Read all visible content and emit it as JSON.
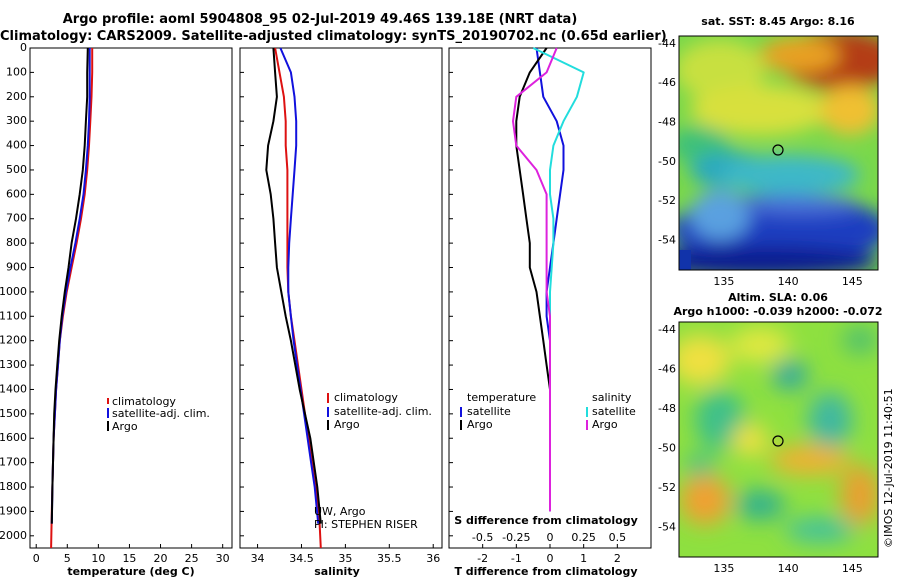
{
  "header": {
    "line1": "Argo profile: aoml 5904808_95 02-Jul-2019 49.46S 139.18E (NRT data)",
    "line2": "Climatology: CARS2009. Satellite-adjusted climatology: synTS_20190702.nc (0.65d earlier)"
  },
  "credit": "©IMOS 12-Jul-2019 11:40:51",
  "colors": {
    "climatology": "#dd1111",
    "satellite": "#1111dd",
    "argo": "#000000",
    "sat_salinity": "#22dddd",
    "argo_salinity": "#dd22dd"
  },
  "chart_data": [
    {
      "id": "temperature",
      "type": "line",
      "xlabel": "temperature (deg C)",
      "ylabel": "",
      "xlim": [
        -1,
        31.5
      ],
      "ylim": [
        2050,
        0
      ],
      "xticks": [
        0,
        5,
        10,
        15,
        20,
        25,
        30
      ],
      "yticks": [
        0,
        100,
        200,
        300,
        400,
        500,
        600,
        700,
        800,
        900,
        1000,
        1100,
        1200,
        1300,
        1400,
        1500,
        1600,
        1700,
        1800,
        1900,
        2000
      ],
      "legend": [
        "climatology",
        "satellite-adj. clim.",
        "Argo"
      ],
      "series": [
        {
          "name": "climatology",
          "color": "#dd1111",
          "x": [
            9.0,
            9.0,
            8.9,
            8.7,
            8.5,
            8.2,
            7.8,
            7.2,
            6.5,
            5.7,
            4.9,
            4.3,
            3.8,
            3.5,
            3.2,
            3.0,
            2.8,
            2.7,
            2.6,
            2.5,
            2.4
          ],
          "y": [
            0,
            100,
            200,
            300,
            400,
            500,
            600,
            700,
            800,
            900,
            1000,
            1100,
            1200,
            1300,
            1400,
            1500,
            1600,
            1700,
            1800,
            1900,
            2050
          ]
        },
        {
          "name": "satellite-adj. clim.",
          "color": "#1111dd",
          "x": [
            8.6,
            8.6,
            8.6,
            8.5,
            8.3,
            8.0,
            7.6,
            7.0,
            6.3,
            5.5,
            4.8,
            4.2,
            3.8,
            3.5,
            3.2,
            3.0,
            2.8,
            2.7,
            2.6,
            2.5
          ],
          "y": [
            0,
            100,
            200,
            300,
            400,
            500,
            600,
            700,
            800,
            900,
            1000,
            1100,
            1200,
            1300,
            1400,
            1500,
            1600,
            1700,
            1800,
            1950
          ]
        },
        {
          "name": "Argo",
          "color": "#000000",
          "x": [
            8.3,
            8.2,
            8.2,
            8.0,
            7.8,
            7.5,
            7.0,
            6.4,
            5.7,
            5.2,
            4.6,
            4.1,
            3.7,
            3.4,
            3.1,
            2.9,
            2.8,
            2.7,
            2.6,
            2.5
          ],
          "y": [
            0,
            100,
            200,
            300,
            400,
            500,
            600,
            700,
            800,
            900,
            1000,
            1100,
            1200,
            1300,
            1400,
            1500,
            1600,
            1700,
            1800,
            1950
          ]
        }
      ]
    },
    {
      "id": "salinity",
      "type": "line",
      "xlabel": "salinity",
      "ylabel": "",
      "xlim": [
        33.8,
        36.1
      ],
      "ylim": [
        2050,
        0
      ],
      "xticks": [
        34,
        34.5,
        35,
        35.5,
        36
      ],
      "legend": [
        "climatology",
        "satellite-adj. clim.",
        "Argo"
      ],
      "annotation": [
        "UW, Argo",
        "PI: STEPHEN RISER"
      ],
      "series": [
        {
          "name": "climatology",
          "color": "#dd1111",
          "x": [
            34.2,
            34.25,
            34.3,
            34.32,
            34.32,
            34.34,
            34.34,
            34.34,
            34.34,
            34.34,
            34.35,
            34.38,
            34.42,
            34.46,
            34.5,
            34.54,
            34.58,
            34.62,
            34.66,
            34.7,
            34.72
          ],
          "y": [
            0,
            100,
            200,
            300,
            400,
            500,
            600,
            700,
            800,
            900,
            1000,
            1100,
            1200,
            1300,
            1400,
            1500,
            1600,
            1700,
            1800,
            1900,
            2050
          ]
        },
        {
          "name": "satellite-adj. clim.",
          "color": "#1111dd",
          "x": [
            34.26,
            34.38,
            34.42,
            34.44,
            34.44,
            34.42,
            34.4,
            34.38,
            34.36,
            34.35,
            34.35,
            34.38,
            34.41,
            34.45,
            34.49,
            34.53,
            34.57,
            34.61,
            34.65,
            34.69
          ],
          "y": [
            0,
            100,
            200,
            300,
            400,
            500,
            600,
            700,
            800,
            900,
            1000,
            1100,
            1200,
            1300,
            1400,
            1500,
            1600,
            1700,
            1800,
            1950
          ]
        },
        {
          "name": "Argo",
          "color": "#000000",
          "x": [
            34.18,
            34.2,
            34.22,
            34.18,
            34.12,
            34.1,
            34.15,
            34.18,
            34.2,
            34.22,
            34.27,
            34.32,
            34.38,
            34.43,
            34.48,
            34.54,
            34.6,
            34.64,
            34.68,
            34.72
          ],
          "y": [
            0,
            100,
            200,
            300,
            400,
            500,
            600,
            700,
            800,
            900,
            1000,
            1100,
            1200,
            1300,
            1400,
            1500,
            1600,
            1700,
            1800,
            1950
          ]
        }
      ]
    },
    {
      "id": "differences",
      "type": "line",
      "xlabel": "T difference from climatology",
      "xlabel_top": "S difference from climatology",
      "ylabel": "",
      "xlim": [
        -3,
        3
      ],
      "ylim": [
        2050,
        0
      ],
      "xticks": [
        -2,
        -1,
        0,
        1,
        2
      ],
      "s_xticks_labels": [
        "-0.5",
        "-0.25",
        "0",
        "0.25",
        "0.5"
      ],
      "s_xticks_pos": [
        -2,
        -1,
        0,
        1,
        2
      ],
      "legend_left": [
        "temperature",
        "satellite",
        "Argo"
      ],
      "legend_right": [
        "salinity",
        "satellite",
        "Argo"
      ],
      "series": [
        {
          "name": "satellite",
          "color": "#1111dd",
          "x": [
            -0.4,
            -0.3,
            -0.2,
            0.2,
            0.4,
            0.4,
            0.3,
            0.2,
            0.1,
            0.0,
            -0.1,
            -0.1,
            0.0,
            0.0,
            0.0,
            0.0,
            0.0,
            0.0,
            0.0,
            0.0
          ],
          "y": [
            0,
            100,
            200,
            300,
            400,
            500,
            600,
            700,
            800,
            900,
            1000,
            1100,
            1200,
            1300,
            1400,
            1500,
            1600,
            1700,
            1800,
            1900
          ]
        },
        {
          "name": "Argo",
          "color": "#000000",
          "x": [
            -0.1,
            -0.6,
            -0.9,
            -1.0,
            -1.0,
            -0.9,
            -0.8,
            -0.7,
            -0.6,
            -0.6,
            -0.4,
            -0.3,
            -0.2,
            -0.1,
            0.0,
            0.0,
            0.0,
            0.0,
            0.0,
            0.0
          ],
          "y": [
            0,
            100,
            200,
            300,
            400,
            500,
            600,
            700,
            800,
            900,
            1000,
            1100,
            1200,
            1300,
            1400,
            1500,
            1600,
            1700,
            1800,
            1900
          ]
        },
        {
          "name": "satellite",
          "color": "#22dddd",
          "x": [
            -0.5,
            1.0,
            0.8,
            0.4,
            0.1,
            0.0,
            0.0,
            0.1,
            0.1,
            0.05,
            0.0,
            0.0,
            0.0,
            0.0,
            0.0,
            0.0,
            0.0,
            0.0,
            0.0,
            0.0
          ],
          "y": [
            0,
            100,
            200,
            300,
            400,
            500,
            600,
            700,
            800,
            900,
            1000,
            1100,
            1200,
            1300,
            1400,
            1500,
            1600,
            1700,
            1800,
            1900
          ]
        },
        {
          "name": "Argo",
          "color": "#dd22dd",
          "x": [
            0.2,
            -0.1,
            -1.0,
            -1.1,
            -1.0,
            -0.4,
            -0.1,
            -0.1,
            -0.1,
            -0.1,
            -0.1,
            0.0,
            0.0,
            0.0,
            0.0,
            0.0,
            0.0,
            0.0,
            0.0,
            0.0
          ],
          "y": [
            0,
            100,
            200,
            300,
            400,
            500,
            600,
            700,
            800,
            900,
            1000,
            1100,
            1200,
            1300,
            1400,
            1500,
            1600,
            1700,
            1800,
            1900
          ]
        }
      ]
    },
    {
      "id": "sst-map",
      "type": "heatmap",
      "title": "sat. SST: 8.45 Argo: 8.16",
      "xlim": [
        131.5,
        147
      ],
      "ylim": [
        -55.5,
        -43.6
      ],
      "xticks": [
        135,
        140,
        145
      ],
      "yticks": [
        -44,
        -46,
        -48,
        -50,
        -52,
        -54
      ],
      "marker": {
        "lon": 139.18,
        "lat": -49.46
      }
    },
    {
      "id": "sla-map",
      "type": "heatmap",
      "title": "Altim. SLA: 0.06",
      "subtitle": "Argo h1000: -0.039 h2000: -0.072",
      "xlim": [
        131.5,
        147
      ],
      "ylim": [
        -55.5,
        -43.6
      ],
      "xticks": [
        135,
        140,
        145
      ],
      "yticks": [
        -44,
        -46,
        -48,
        -50,
        -52,
        -54
      ],
      "marker": {
        "lon": 139.18,
        "lat": -49.46
      }
    }
  ]
}
